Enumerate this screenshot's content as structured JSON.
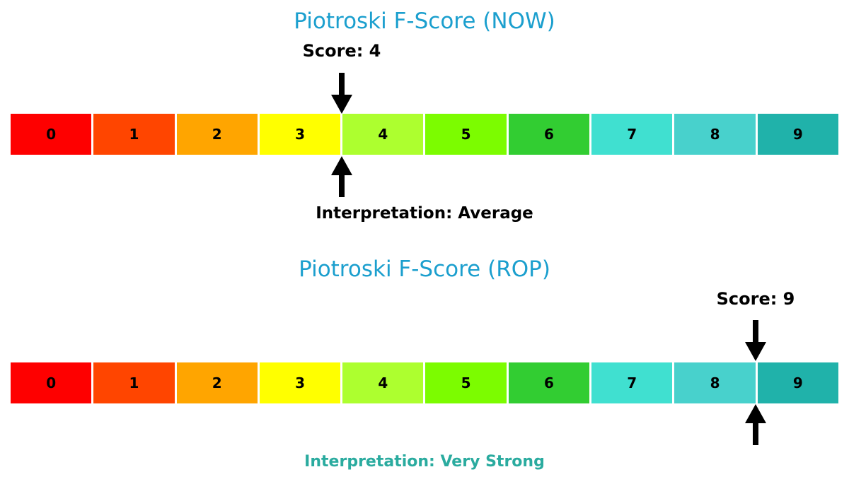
{
  "figure": {
    "background": "#ffffff",
    "arrow_color": "#000000"
  },
  "charts": [
    {
      "id": "now",
      "title": "Piotroski F-Score (NOW)",
      "title_color": "#1b9fce",
      "score": 4,
      "score_label": "Score: 4",
      "interpretation_label": "Interpretation: Average",
      "interpretation_color": "#000000",
      "segments": [
        {
          "label": "0",
          "color": "#fe0000"
        },
        {
          "label": "1",
          "color": "#ff4500"
        },
        {
          "label": "2",
          "color": "#ffa500"
        },
        {
          "label": "3",
          "color": "#ffff00"
        },
        {
          "label": "4",
          "color": "#adff2f"
        },
        {
          "label": "5",
          "color": "#7cfc00"
        },
        {
          "label": "6",
          "color": "#32cd32"
        },
        {
          "label": "7",
          "color": "#40e0d0"
        },
        {
          "label": "8",
          "color": "#48d1cc"
        },
        {
          "label": "9",
          "color": "#20b2aa"
        }
      ]
    },
    {
      "id": "rop",
      "title": "Piotroski F-Score (ROP)",
      "title_color": "#1b9fce",
      "score": 9,
      "score_label": "Score: 9",
      "interpretation_label": "Interpretation: Very Strong",
      "interpretation_color": "#2aab9f",
      "segments": [
        {
          "label": "0",
          "color": "#fe0000"
        },
        {
          "label": "1",
          "color": "#ff4500"
        },
        {
          "label": "2",
          "color": "#ffa500"
        },
        {
          "label": "3",
          "color": "#ffff00"
        },
        {
          "label": "4",
          "color": "#adff2f"
        },
        {
          "label": "5",
          "color": "#7cfc00"
        },
        {
          "label": "6",
          "color": "#32cd32"
        },
        {
          "label": "7",
          "color": "#40e0d0"
        },
        {
          "label": "8",
          "color": "#48d1cc"
        },
        {
          "label": "9",
          "color": "#20b2aa"
        }
      ]
    }
  ],
  "chart_data": [
    {
      "type": "heatmap",
      "title": "Piotroski F-Score (NOW)",
      "categories": [
        "0",
        "1",
        "2",
        "3",
        "4",
        "5",
        "6",
        "7",
        "8",
        "9"
      ],
      "values": [
        0,
        1,
        2,
        3,
        4,
        5,
        6,
        7,
        8,
        9
      ],
      "colors": [
        "#fe0000",
        "#ff4500",
        "#ffa500",
        "#ffff00",
        "#adff2f",
        "#7cfc00",
        "#32cd32",
        "#40e0d0",
        "#48d1cc",
        "#20b2aa"
      ],
      "marker_score": 4,
      "annotations": [
        "Score: 4",
        "Interpretation: Average"
      ],
      "xlabel": "",
      "ylabel": "",
      "legend_position": "none",
      "grid": false
    },
    {
      "type": "heatmap",
      "title": "Piotroski F-Score (ROP)",
      "categories": [
        "0",
        "1",
        "2",
        "3",
        "4",
        "5",
        "6",
        "7",
        "8",
        "9"
      ],
      "values": [
        0,
        1,
        2,
        3,
        4,
        5,
        6,
        7,
        8,
        9
      ],
      "colors": [
        "#fe0000",
        "#ff4500",
        "#ffa500",
        "#ffff00",
        "#adff2f",
        "#7cfc00",
        "#32cd32",
        "#40e0d0",
        "#48d1cc",
        "#20b2aa"
      ],
      "marker_score": 9,
      "annotations": [
        "Score: 9",
        "Interpretation: Very Strong"
      ],
      "xlabel": "",
      "ylabel": "",
      "legend_position": "none",
      "grid": false
    }
  ]
}
